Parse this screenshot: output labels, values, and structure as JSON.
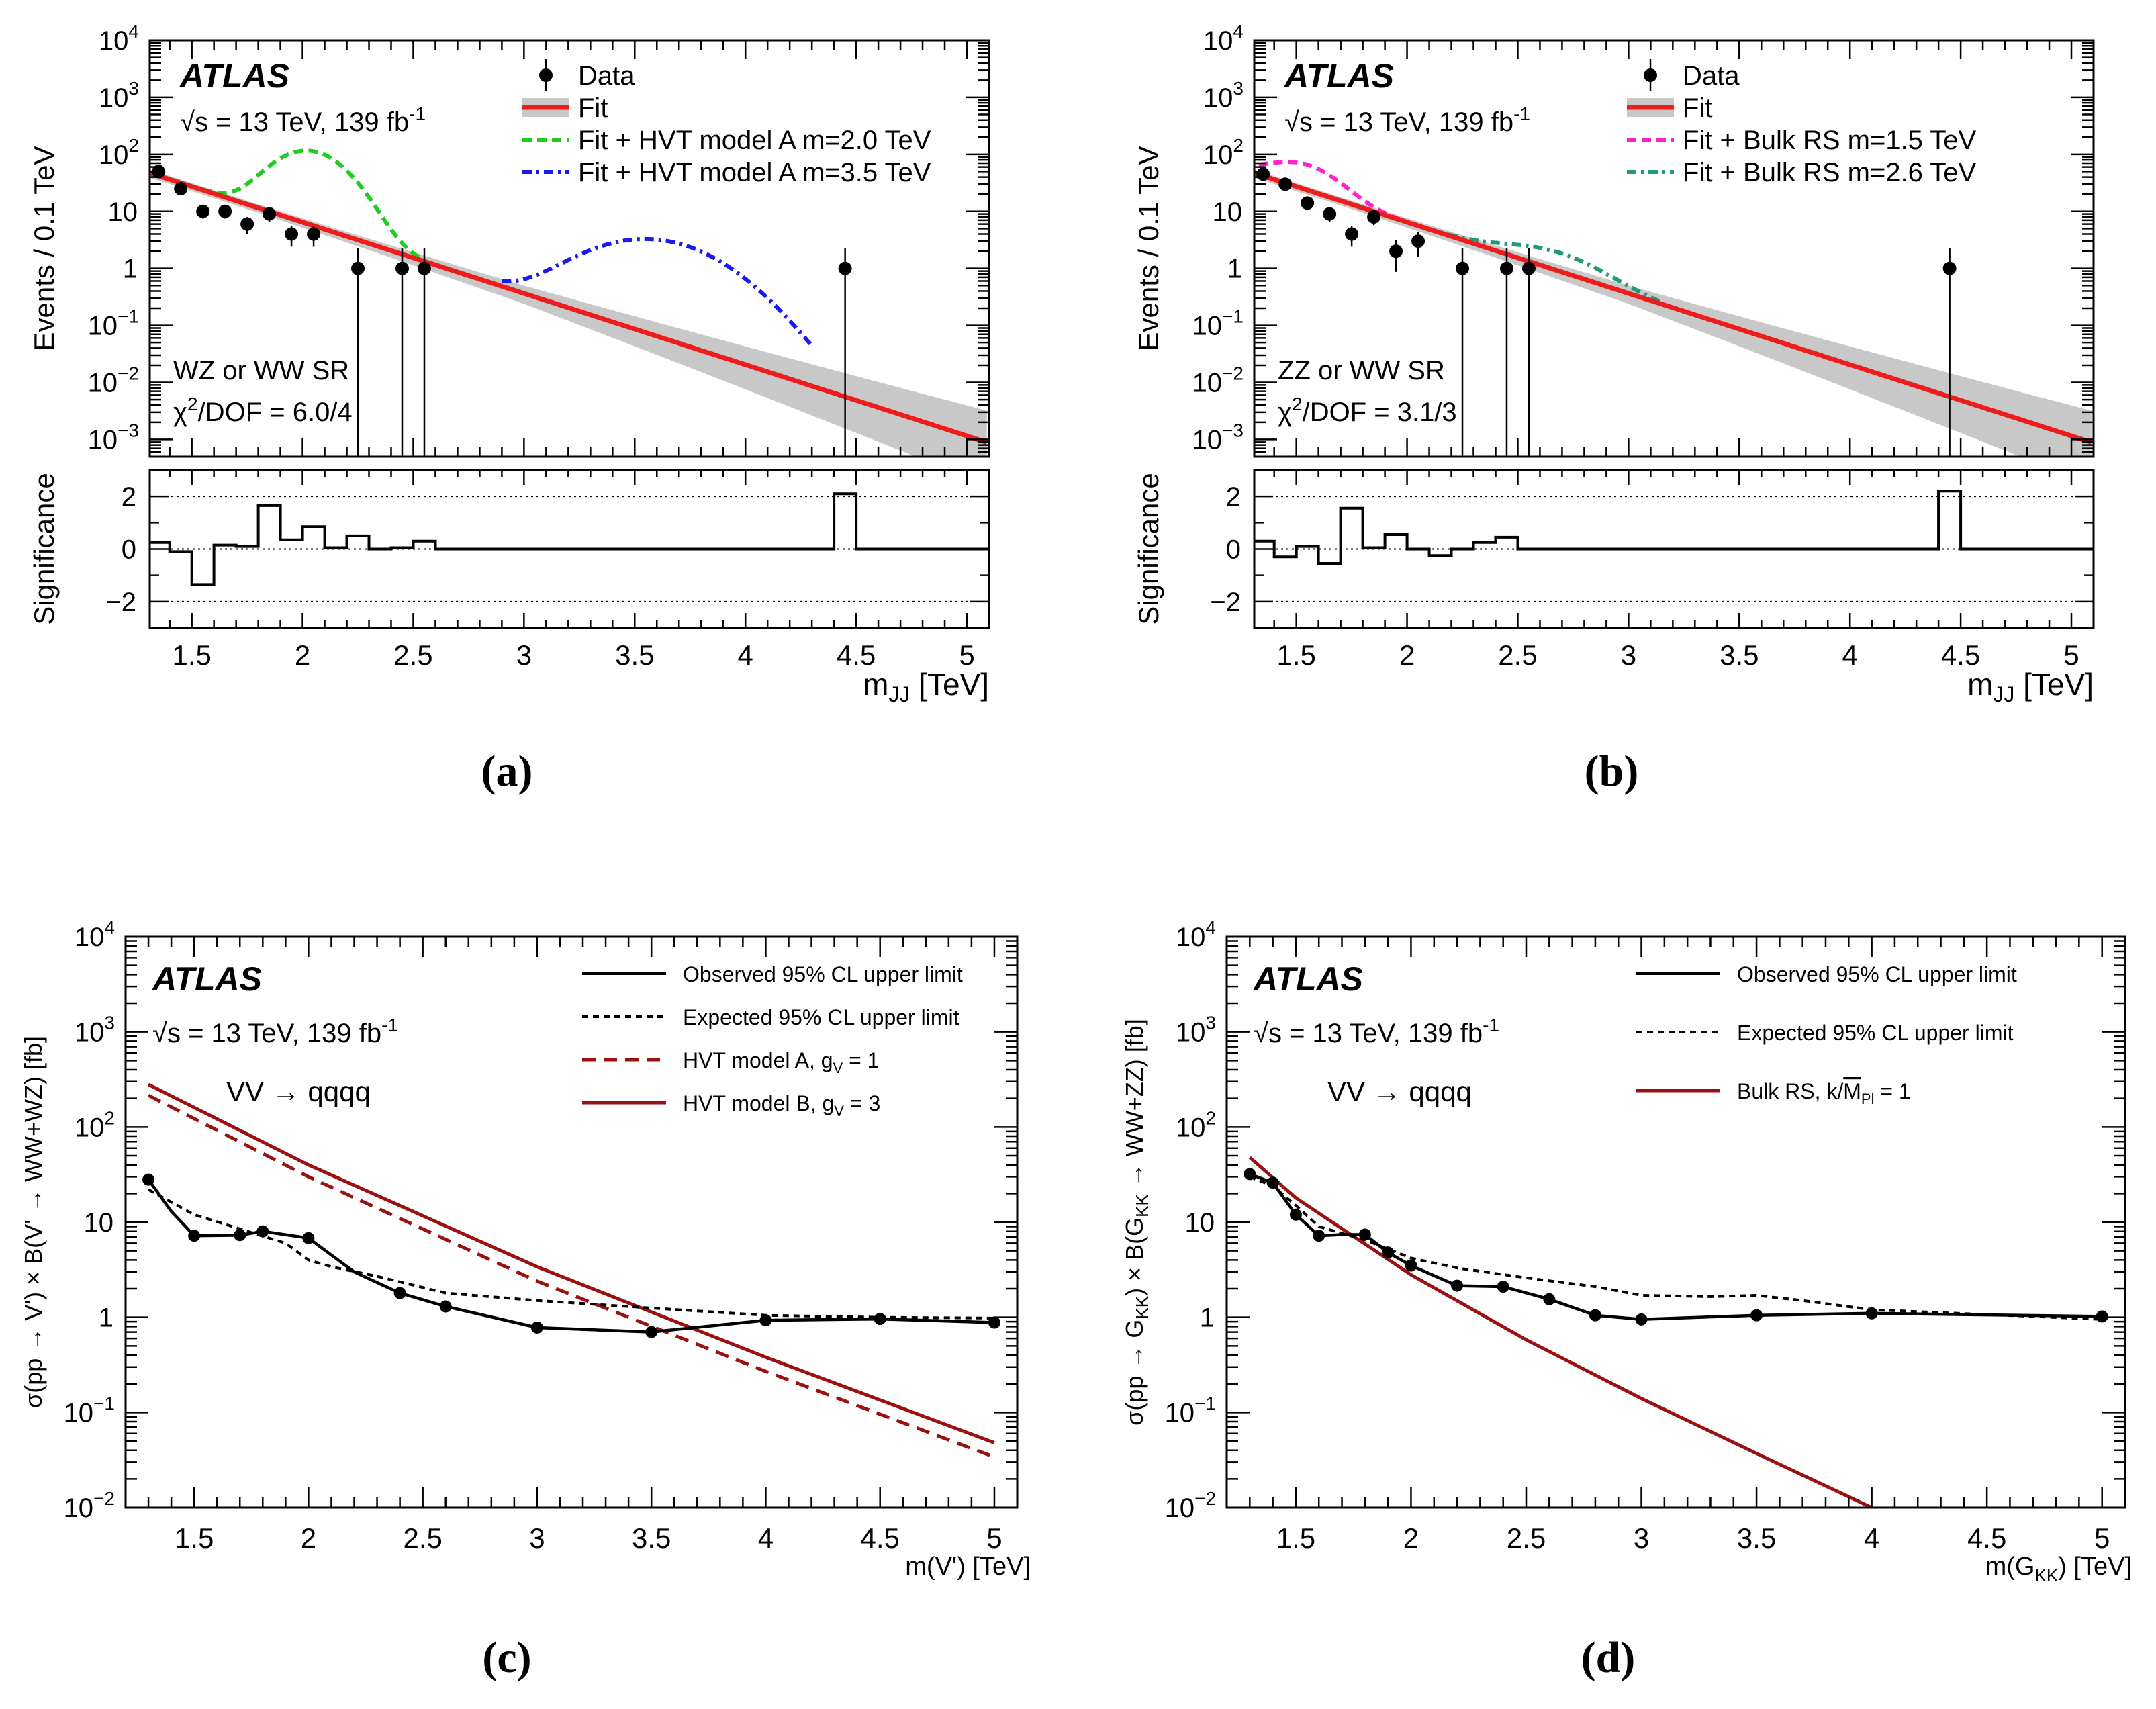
{
  "colors": {
    "red": "#ee1c1c",
    "band": "#c8c8c8",
    "green": "#1fcc1f",
    "blue": "#1a1aee",
    "magenta": "#ff22cc",
    "teal": "#22997a",
    "darkred": "#991111",
    "black": "#000000"
  },
  "common": {
    "atlas": "ATLAS",
    "energy_pre": "√s = 13 TeV, 139 fb",
    "energy_sup": "-1",
    "sig_label": "Significance"
  },
  "chart_data": [
    {
      "panel": "a",
      "type": "scatter",
      "caption": "(a)",
      "ylabel": "Events / 0.1 TeV",
      "xlabel_main": "m",
      "xlabel_sub": "JJ",
      "xlabel_unit": " [TeV]",
      "xlim": [
        1.31,
        5.1
      ],
      "ylim": [
        0.0005,
        10000
      ],
      "x_ticks": [
        "1.5",
        "2",
        "2.5",
        "3",
        "3.5",
        "4",
        "4.5",
        "5"
      ],
      "x_tick_values": [
        1.5,
        2,
        2.5,
        3,
        3.5,
        4,
        4.5,
        5
      ],
      "region_label": "WZ or WW SR",
      "chi2_pre": "χ",
      "chi2_sup": "2",
      "chi2_post": "/DOF = 6.0/4",
      "legend": [
        {
          "kind": "data",
          "label": "Data"
        },
        {
          "kind": "band",
          "label": "Fit"
        },
        {
          "kind": "green",
          "label": "Fit + HVT model A m=2.0 TeV"
        },
        {
          "kind": "blue",
          "label": "Fit + HVT model A m=3.5 TeV"
        }
      ],
      "data_points": [
        [
          1.35,
          50
        ],
        [
          1.45,
          25
        ],
        [
          1.55,
          10
        ],
        [
          1.65,
          10
        ],
        [
          1.75,
          6
        ],
        [
          1.85,
          9
        ],
        [
          1.95,
          4
        ],
        [
          2.05,
          4
        ],
        [
          2.25,
          1
        ],
        [
          2.45,
          1
        ],
        [
          2.55,
          1
        ],
        [
          4.45,
          1
        ]
      ],
      "fit_norm": 42,
      "fit_slope": 1.42,
      "signal_green": {
        "center": 2.02,
        "width": 0.14,
        "peak": 110,
        "range": [
          1.55,
          2.55
        ]
      },
      "signal_blue": {
        "center": 3.55,
        "width": 0.25,
        "peak": 3.2,
        "range": [
          2.9,
          4.3
        ]
      },
      "significance": {
        "edges": [
          1.3,
          1.4,
          1.5,
          1.6,
          1.7,
          1.8,
          1.9,
          2.0,
          2.1,
          2.2,
          2.3,
          2.4,
          2.5,
          2.6,
          4.4,
          4.5,
          5.1
        ],
        "values": [
          0.25,
          -0.1,
          -1.35,
          0.15,
          0.1,
          1.65,
          0.35,
          0.85,
          0.05,
          0.5,
          0.0,
          0.05,
          0.3,
          0.0,
          2.1,
          0.0
        ],
        "ticks": [
          "2",
          "0",
          "−2"
        ],
        "tick_values": [
          2,
          0,
          -2
        ]
      }
    },
    {
      "panel": "b",
      "type": "scatter",
      "caption": "(b)",
      "ylabel": "Events / 0.1 TeV",
      "xlabel_main": "m",
      "xlabel_sub": "JJ",
      "xlabel_unit": " [TeV]",
      "xlim": [
        1.31,
        5.1
      ],
      "ylim": [
        0.0005,
        10000
      ],
      "x_ticks": [
        "1.5",
        "2",
        "2.5",
        "3",
        "3.5",
        "4",
        "4.5",
        "5"
      ],
      "x_tick_values": [
        1.5,
        2,
        2.5,
        3,
        3.5,
        4,
        4.5,
        5
      ],
      "region_label": "ZZ or WW SR",
      "chi2_pre": "χ",
      "chi2_sup": "2",
      "chi2_post": "/DOF = 3.1/3",
      "legend": [
        {
          "kind": "data",
          "label": "Data"
        },
        {
          "kind": "band",
          "label": "Fit"
        },
        {
          "kind": "magenta",
          "label": "Fit + Bulk RS m=1.5 TeV"
        },
        {
          "kind": "teal",
          "label": "Fit + Bulk RS m=2.6 TeV"
        }
      ],
      "data_points": [
        [
          1.35,
          45
        ],
        [
          1.45,
          30
        ],
        [
          1.55,
          14
        ],
        [
          1.65,
          9
        ],
        [
          1.75,
          4
        ],
        [
          1.85,
          8
        ],
        [
          1.95,
          2
        ],
        [
          2.05,
          3
        ],
        [
          2.25,
          1
        ],
        [
          2.45,
          1
        ],
        [
          2.55,
          1
        ],
        [
          4.45,
          1
        ]
      ],
      "fit_norm": 42,
      "fit_slope": 1.42,
      "signal_magenta": {
        "center": 1.5,
        "width": 0.14,
        "peak": 45,
        "range": [
          1.33,
          2.1
        ]
      },
      "signal_teal": {
        "center": 2.58,
        "width": 0.2,
        "peak": 1.15,
        "range": [
          2.0,
          3.15
        ]
      },
      "significance": {
        "edges": [
          1.3,
          1.4,
          1.5,
          1.6,
          1.7,
          1.8,
          1.9,
          2.0,
          2.1,
          2.2,
          2.3,
          2.4,
          2.5,
          2.6,
          4.4,
          4.5,
          5.1
        ],
        "values": [
          0.3,
          -0.3,
          0.1,
          -0.55,
          1.55,
          0.05,
          0.55,
          0.0,
          -0.25,
          0.0,
          0.25,
          0.45,
          0.0,
          0.0,
          2.2,
          0.0
        ],
        "ticks": [
          "2",
          "0",
          "−2"
        ],
        "tick_values": [
          2,
          0,
          -2
        ]
      }
    },
    {
      "panel": "c",
      "type": "line",
      "caption": "(c)",
      "ylabel_pre": "σ(pp → V') × B(V' → WW+WZ) [fb]",
      "xlabel": "m(V') [TeV]",
      "xlim": [
        1.2,
        5.1
      ],
      "ylim": [
        0.01,
        10000
      ],
      "x_ticks": [
        "1.5",
        "2",
        "2.5",
        "3",
        "3.5",
        "4",
        "4.5",
        "5"
      ],
      "x_tick_values": [
        1.5,
        2,
        2.5,
        3,
        3.5,
        4,
        4.5,
        5
      ],
      "process": "VV → qqqq",
      "legend": [
        {
          "kind": "obs",
          "label": "Observed 95% CL upper limit"
        },
        {
          "kind": "exp",
          "label": "Expected 95% CL upper limit"
        },
        {
          "kind": "hvta",
          "label": "HVT model A, g",
          "sub": "V",
          "post": " = 1"
        },
        {
          "kind": "hvtb",
          "label": "HVT model B, g",
          "sub": "V",
          "post": " = 3"
        }
      ],
      "observed": [
        [
          1.3,
          28
        ],
        [
          1.4,
          13
        ],
        [
          1.5,
          7.2
        ],
        [
          1.7,
          7.3
        ],
        [
          1.8,
          8
        ],
        [
          2.0,
          6.8
        ],
        [
          2.2,
          3
        ],
        [
          2.4,
          1.8
        ],
        [
          2.6,
          1.3
        ],
        [
          3.0,
          0.78
        ],
        [
          3.5,
          0.7
        ],
        [
          4.0,
          0.93
        ],
        [
          4.5,
          0.96
        ],
        [
          5.0,
          0.88
        ]
      ],
      "observed_markers": [
        [
          1.3,
          28
        ],
        [
          1.5,
          7.2
        ],
        [
          1.7,
          7.3
        ],
        [
          1.8,
          8
        ],
        [
          2.0,
          6.8
        ],
        [
          2.4,
          1.8
        ],
        [
          2.6,
          1.3
        ],
        [
          3.0,
          0.78
        ],
        [
          3.5,
          0.7
        ],
        [
          4.0,
          0.93
        ],
        [
          4.5,
          0.96
        ],
        [
          5.0,
          0.88
        ]
      ],
      "expected": [
        [
          1.3,
          22
        ],
        [
          1.5,
          12
        ],
        [
          1.7,
          8.5
        ],
        [
          1.9,
          6
        ],
        [
          2.0,
          4
        ],
        [
          2.1,
          3.4
        ],
        [
          2.3,
          2.7
        ],
        [
          2.6,
          1.8
        ],
        [
          3.0,
          1.5
        ],
        [
          3.5,
          1.25
        ],
        [
          4.0,
          1.05
        ],
        [
          4.5,
          1.0
        ],
        [
          5.0,
          0.98
        ]
      ],
      "hvt_a": [
        [
          1.3,
          215
        ],
        [
          2.0,
          30
        ],
        [
          3.0,
          2.4
        ],
        [
          4.0,
          0.27
        ],
        [
          5.0,
          0.034
        ]
      ],
      "hvt_b": [
        [
          1.3,
          280
        ],
        [
          2.0,
          40
        ],
        [
          3.0,
          3.4
        ],
        [
          4.0,
          0.38
        ],
        [
          5.0,
          0.048
        ]
      ]
    },
    {
      "panel": "d",
      "type": "line",
      "caption": "(d)",
      "ylabel_pre": "σ(pp → G",
      "ylabel_sub1": "KK",
      "ylabel_mid": ") × B(G",
      "ylabel_sub2": "KK",
      "ylabel_post": " → WW+ZZ) [fb]",
      "xlabel_pre": "m(G",
      "xlabel_sub": "KK",
      "xlabel_post": ") [TeV]",
      "xlim": [
        1.2,
        5.1
      ],
      "ylim": [
        0.01,
        10000
      ],
      "x_ticks": [
        "1.5",
        "2",
        "2.5",
        "3",
        "3.5",
        "4",
        "4.5",
        "5"
      ],
      "x_tick_values": [
        1.5,
        2,
        2.5,
        3,
        3.5,
        4,
        4.5,
        5
      ],
      "process": "VV → qqqq",
      "legend": [
        {
          "kind": "obs",
          "label": "Observed 95% CL upper limit"
        },
        {
          "kind": "exp",
          "label": "Expected 95% CL upper limit"
        },
        {
          "kind": "bulk",
          "label": "Bulk RS, k/",
          "bar": "M",
          "sub": "Pl",
          "post": " = 1"
        }
      ],
      "observed": [
        [
          1.3,
          32
        ],
        [
          1.4,
          26
        ],
        [
          1.5,
          12
        ],
        [
          1.6,
          7.2
        ],
        [
          1.7,
          7.4
        ],
        [
          1.8,
          7.4
        ],
        [
          1.9,
          4.8
        ],
        [
          2.0,
          3.5
        ],
        [
          2.2,
          2.15
        ],
        [
          2.4,
          2.1
        ],
        [
          2.6,
          1.55
        ],
        [
          2.8,
          1.05
        ],
        [
          3.0,
          0.95
        ],
        [
          3.5,
          1.05
        ],
        [
          4.0,
          1.1
        ],
        [
          5.0,
          1.02
        ]
      ],
      "observed_markers": [
        [
          1.3,
          32
        ],
        [
          1.4,
          26
        ],
        [
          1.5,
          12
        ],
        [
          1.6,
          7.2
        ],
        [
          1.8,
          7.4
        ],
        [
          1.9,
          4.8
        ],
        [
          2.0,
          3.5
        ],
        [
          2.2,
          2.15
        ],
        [
          2.4,
          2.1
        ],
        [
          2.6,
          1.55
        ],
        [
          2.8,
          1.05
        ],
        [
          3.0,
          0.95
        ],
        [
          3.5,
          1.05
        ],
        [
          4.0,
          1.1
        ],
        [
          5.0,
          1.02
        ]
      ],
      "expected": [
        [
          1.3,
          30
        ],
        [
          1.4,
          24
        ],
        [
          1.5,
          15
        ],
        [
          1.6,
          9
        ],
        [
          1.8,
          6.5
        ],
        [
          2.0,
          4.2
        ],
        [
          2.2,
          3.3
        ],
        [
          2.5,
          2.6
        ],
        [
          2.8,
          2.1
        ],
        [
          3.0,
          1.7
        ],
        [
          3.3,
          1.65
        ],
        [
          3.5,
          1.7
        ],
        [
          3.7,
          1.5
        ],
        [
          4.0,
          1.2
        ],
        [
          5.0,
          0.95
        ]
      ],
      "bulk": [
        [
          1.3,
          48
        ],
        [
          1.5,
          18
        ],
        [
          2.0,
          2.8
        ],
        [
          2.5,
          0.58
        ],
        [
          3.0,
          0.14
        ],
        [
          3.5,
          0.037
        ],
        [
          4.0,
          0.01
        ]
      ]
    }
  ]
}
